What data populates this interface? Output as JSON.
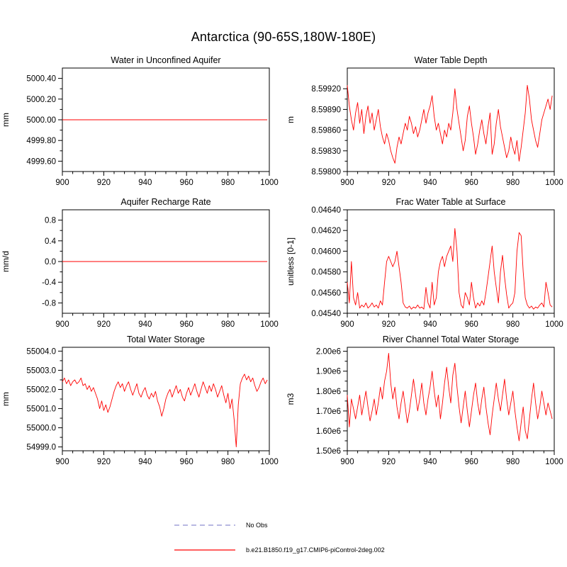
{
  "page_title": "Antarctica (90-65S,180W-180E)",
  "colors": {
    "series": "#ff0000",
    "no_obs": "#a0a0d8",
    "axis": "#000000"
  },
  "legend": {
    "entries": [
      {
        "label": "No Obs",
        "style": "dashed",
        "color": "#a0a0d8"
      },
      {
        "label": "b.e21.B1850.f19_g17.CMIP6-piControl-2deg.002",
        "style": "solid",
        "color": "#ff0000"
      }
    ]
  },
  "chart_data": [
    {
      "type": "line",
      "title": "Water in Unconfined Aquifer",
      "ylabel": "mm",
      "xlim": [
        900,
        1000
      ],
      "xticks": [
        900,
        920,
        940,
        960,
        980,
        1000
      ],
      "xtick_labels": [
        "900",
        "920",
        "940",
        "960",
        "980",
        "1000"
      ],
      "ylim": [
        4999.5,
        5000.5
      ],
      "yticks": [
        4999.6,
        4999.8,
        5000.0,
        5000.2,
        5000.4
      ],
      "ytick_labels": [
        "4999.60",
        "4999.80",
        "5000.00",
        "5000.20",
        "5000.40"
      ],
      "series": [
        {
          "name": "b.e21.B1850.f19_g17.CMIP6-piControl-2deg.002",
          "color": "#ff0000",
          "x_start": 900,
          "x_step": 99,
          "values": [
            5000.0,
            5000.0
          ]
        }
      ]
    },
    {
      "type": "line",
      "title": "Water Table Depth",
      "ylabel": "m",
      "xlim": [
        900,
        1000
      ],
      "xticks": [
        900,
        920,
        940,
        960,
        980,
        1000
      ],
      "xtick_labels": [
        "900",
        "920",
        "940",
        "960",
        "980",
        "1000"
      ],
      "ylim": [
        8.598,
        8.5995
      ],
      "yticks": [
        8.598,
        8.5983,
        8.5986,
        8.5989,
        8.5992
      ],
      "ytick_labels": [
        "8.59800",
        "8.59830",
        "8.59860",
        "8.59890",
        "8.59920"
      ],
      "series": [
        {
          "name": "b.e21.B1850.f19_g17.CMIP6-piControl-2deg.002",
          "color": "#ff0000",
          "x_start": 900,
          "x_step": 1,
          "values": [
            8.59925,
            8.59895,
            8.59875,
            8.5986,
            8.59885,
            8.599,
            8.5987,
            8.5989,
            8.59855,
            8.5988,
            8.59895,
            8.5987,
            8.59885,
            8.5986,
            8.59875,
            8.5989,
            8.59865,
            8.5985,
            8.5984,
            8.59855,
            8.59845,
            8.5983,
            8.5982,
            8.59812,
            8.59835,
            8.5985,
            8.5984,
            8.59855,
            8.5987,
            8.5986,
            8.5988,
            8.5987,
            8.59855,
            8.59865,
            8.5985,
            8.5986,
            8.59875,
            8.5989,
            8.5987,
            8.59885,
            8.59895,
            8.5991,
            8.5988,
            8.5986,
            8.5987,
            8.59855,
            8.5984,
            8.5986,
            8.5985,
            8.5987,
            8.5986,
            8.59885,
            8.5992,
            8.5989,
            8.5987,
            8.5985,
            8.5983,
            8.59845,
            8.5988,
            8.59895,
            8.5987,
            8.5985,
            8.59825,
            8.5984,
            8.5986,
            8.59875,
            8.59855,
            8.5984,
            8.59865,
            8.59885,
            8.59825,
            8.5984,
            8.5987,
            8.5989,
            8.59865,
            8.5985,
            8.59835,
            8.5982,
            8.5983,
            8.5985,
            8.59835,
            8.59825,
            8.59845,
            8.59815,
            8.59835,
            8.5986,
            8.59885,
            8.59925,
            8.59905,
            8.59875,
            8.5986,
            8.59845,
            8.59835,
            8.59855,
            8.59875,
            8.59885,
            8.59895,
            8.59905,
            8.5989,
            8.5991
          ]
        }
      ]
    },
    {
      "type": "line",
      "title": "Aquifer Recharge Rate",
      "ylabel": "mm/d",
      "xlim": [
        900,
        1000
      ],
      "xticks": [
        900,
        920,
        940,
        960,
        980,
        1000
      ],
      "xtick_labels": [
        "900",
        "920",
        "940",
        "960",
        "980",
        "1000"
      ],
      "ylim": [
        -1.0,
        1.0
      ],
      "yticks": [
        -0.8,
        -0.4,
        0.0,
        0.4,
        0.8
      ],
      "ytick_labels": [
        "-0.8",
        "-0.4",
        "0.0",
        "0.4",
        "0.8"
      ],
      "series": [
        {
          "name": "b.e21.B1850.f19_g17.CMIP6-piControl-2deg.002",
          "color": "#ff0000",
          "x_start": 900,
          "x_step": 99,
          "values": [
            0.0,
            0.0
          ]
        }
      ]
    },
    {
      "type": "line",
      "title": "Frac Water Table at Surface",
      "ylabel": "unitless [0-1]",
      "xlim": [
        900,
        1000
      ],
      "xticks": [
        900,
        920,
        940,
        960,
        980,
        1000
      ],
      "xtick_labels": [
        "900",
        "920",
        "940",
        "960",
        "980",
        "1000"
      ],
      "ylim": [
        0.0454,
        0.0464
      ],
      "yticks": [
        0.0454,
        0.0456,
        0.0458,
        0.046,
        0.0462,
        0.0464
      ],
      "ytick_labels": [
        "0.04540",
        "0.04560",
        "0.04580",
        "0.04600",
        "0.04620",
        "0.04640"
      ],
      "series": [
        {
          "name": "b.e21.B1850.f19_g17.CMIP6-piControl-2deg.002",
          "color": "#ff0000",
          "x_start": 900,
          "x_step": 1,
          "values": [
            0.0457,
            0.0455,
            0.0459,
            0.04555,
            0.04548,
            0.0456,
            0.04545,
            0.04548,
            0.04546,
            0.0455,
            0.04545,
            0.04547,
            0.0455,
            0.04546,
            0.04548,
            0.04545,
            0.04552,
            0.04548,
            0.0457,
            0.0459,
            0.04595,
            0.0459,
            0.04585,
            0.0459,
            0.046,
            0.04585,
            0.0457,
            0.0455,
            0.04546,
            0.04545,
            0.04547,
            0.04544,
            0.04546,
            0.04545,
            0.04548,
            0.04545,
            0.04546,
            0.04544,
            0.04565,
            0.0455,
            0.04545,
            0.0457,
            0.04548,
            0.04555,
            0.0458,
            0.0459,
            0.04595,
            0.04585,
            0.04595,
            0.046,
            0.04605,
            0.0459,
            0.04622,
            0.046,
            0.0456,
            0.04548,
            0.04545,
            0.0456,
            0.04555,
            0.04548,
            0.0457,
            0.04555,
            0.04545,
            0.0455,
            0.04547,
            0.04552,
            0.04548,
            0.0456,
            0.04575,
            0.0459,
            0.04605,
            0.0458,
            0.04565,
            0.0455,
            0.0458,
            0.04596,
            0.04575,
            0.04558,
            0.04545,
            0.04548,
            0.0455,
            0.0456,
            0.046,
            0.04618,
            0.04615,
            0.0458,
            0.04555,
            0.04548,
            0.04545,
            0.04547,
            0.04544,
            0.04546,
            0.04545,
            0.04548,
            0.0455,
            0.04546,
            0.0457,
            0.0456,
            0.04548,
            0.04546
          ]
        }
      ]
    },
    {
      "type": "line",
      "title": "Total Water Storage",
      "ylabel": "mm",
      "xlim": [
        900,
        1000
      ],
      "xticks": [
        900,
        920,
        940,
        960,
        980,
        1000
      ],
      "xtick_labels": [
        "900",
        "920",
        "940",
        "960",
        "980",
        "1000"
      ],
      "ylim": [
        54998.8,
        55004.2
      ],
      "yticks": [
        54999.0,
        55000.0,
        55001.0,
        55002.0,
        55003.0,
        55004.0
      ],
      "ytick_labels": [
        "54999.0",
        "55000.0",
        "55001.0",
        "55002.0",
        "55003.0",
        "55004.0"
      ],
      "series": [
        {
          "name": "b.e21.B1850.f19_g17.CMIP6-piControl-2deg.002",
          "color": "#ff0000",
          "x_start": 900,
          "x_step": 1,
          "values": [
            55002.4,
            55002.6,
            55002.3,
            55002.5,
            55002.2,
            55002.4,
            55002.5,
            55002.3,
            55002.4,
            55002.6,
            55002.2,
            55002.3,
            55002.0,
            55002.2,
            55001.9,
            55002.1,
            55001.8,
            55001.5,
            55001.0,
            55001.4,
            55000.9,
            55001.2,
            55000.8,
            55001.1,
            55001.5,
            55001.9,
            55002.2,
            55002.4,
            55002.1,
            55002.3,
            55001.9,
            55002.2,
            55002.4,
            55002.0,
            55001.7,
            55002.0,
            55002.3,
            55001.8,
            55001.6,
            55001.9,
            55002.1,
            55001.7,
            55001.5,
            55001.8,
            55001.6,
            55001.9,
            55001.4,
            55001.1,
            55000.6,
            55001.0,
            55001.5,
            55001.8,
            55002.0,
            55001.6,
            55001.9,
            55002.2,
            55001.8,
            55002.0,
            55001.6,
            55001.4,
            55001.8,
            55002.1,
            55001.7,
            55002.0,
            55002.3,
            55001.9,
            55001.6,
            55002.0,
            55002.4,
            55002.1,
            55001.8,
            55002.2,
            55001.9,
            55002.3,
            55002.0,
            55001.6,
            55001.9,
            55002.2,
            55001.7,
            55001.3,
            55001.8,
            55001.0,
            55001.5,
            55000.4,
            54999.0,
            55001.2,
            55002.3,
            55002.6,
            55002.8,
            55002.5,
            55002.7,
            55002.4,
            55002.6,
            55002.2,
            55001.9,
            55002.1,
            55002.4,
            55002.6,
            55002.3,
            55002.5
          ]
        }
      ]
    },
    {
      "type": "line",
      "title": "River Channel Total Water Storage",
      "ylabel": "m3",
      "xlim": [
        900,
        1000
      ],
      "xticks": [
        900,
        920,
        940,
        960,
        980,
        1000
      ],
      "xtick_labels": [
        "900",
        "920",
        "940",
        "960",
        "980",
        "1000"
      ],
      "ylim": [
        1500000.0,
        2020000.0
      ],
      "yticks": [
        1500000.0,
        1600000.0,
        1700000.0,
        1800000.0,
        1900000.0,
        2000000.0
      ],
      "ytick_labels": [
        "1.50e6",
        "1.60e6",
        "1.70e6",
        "1.80e6",
        "1.90e6",
        "2.00e6"
      ],
      "series": [
        {
          "name": "b.e21.B1850.f19_g17.CMIP6-piControl-2deg.002",
          "color": "#ff0000",
          "x_start": 900,
          "x_step": 1,
          "values": [
            1780000.0,
            1620000.0,
            1760000.0,
            1710000.0,
            1660000.0,
            1720000.0,
            1780000.0,
            1680000.0,
            1740000.0,
            1800000.0,
            1720000.0,
            1650000.0,
            1700000.0,
            1760000.0,
            1680000.0,
            1740000.0,
            1820000.0,
            1760000.0,
            1850000.0,
            1900000.0,
            1990000.0,
            1840000.0,
            1760000.0,
            1820000.0,
            1720000.0,
            1660000.0,
            1740000.0,
            1800000.0,
            1720000.0,
            1640000.0,
            1700000.0,
            1780000.0,
            1860000.0,
            1780000.0,
            1700000.0,
            1760000.0,
            1840000.0,
            1740000.0,
            1680000.0,
            1760000.0,
            1820000.0,
            1900000.0,
            1800000.0,
            1720000.0,
            1780000.0,
            1660000.0,
            1740000.0,
            1840000.0,
            1920000.0,
            1820000.0,
            1740000.0,
            1880000.0,
            1940000.0,
            1820000.0,
            1720000.0,
            1640000.0,
            1720000.0,
            1800000.0,
            1700000.0,
            1620000.0,
            1700000.0,
            1780000.0,
            1840000.0,
            1740000.0,
            1680000.0,
            1760000.0,
            1820000.0,
            1720000.0,
            1640000.0,
            1580000.0,
            1680000.0,
            1760000.0,
            1840000.0,
            1760000.0,
            1700000.0,
            1780000.0,
            1860000.0,
            1760000.0,
            1680000.0,
            1740000.0,
            1800000.0,
            1700000.0,
            1620000.0,
            1550000.0,
            1640000.0,
            1720000.0,
            1600000.0,
            1560000.0,
            1660000.0,
            1760000.0,
            1840000.0,
            1740000.0,
            1660000.0,
            1720000.0,
            1800000.0,
            1740000.0,
            1680000.0,
            1740000.0,
            1700000.0,
            1660000.0
          ]
        }
      ]
    }
  ]
}
